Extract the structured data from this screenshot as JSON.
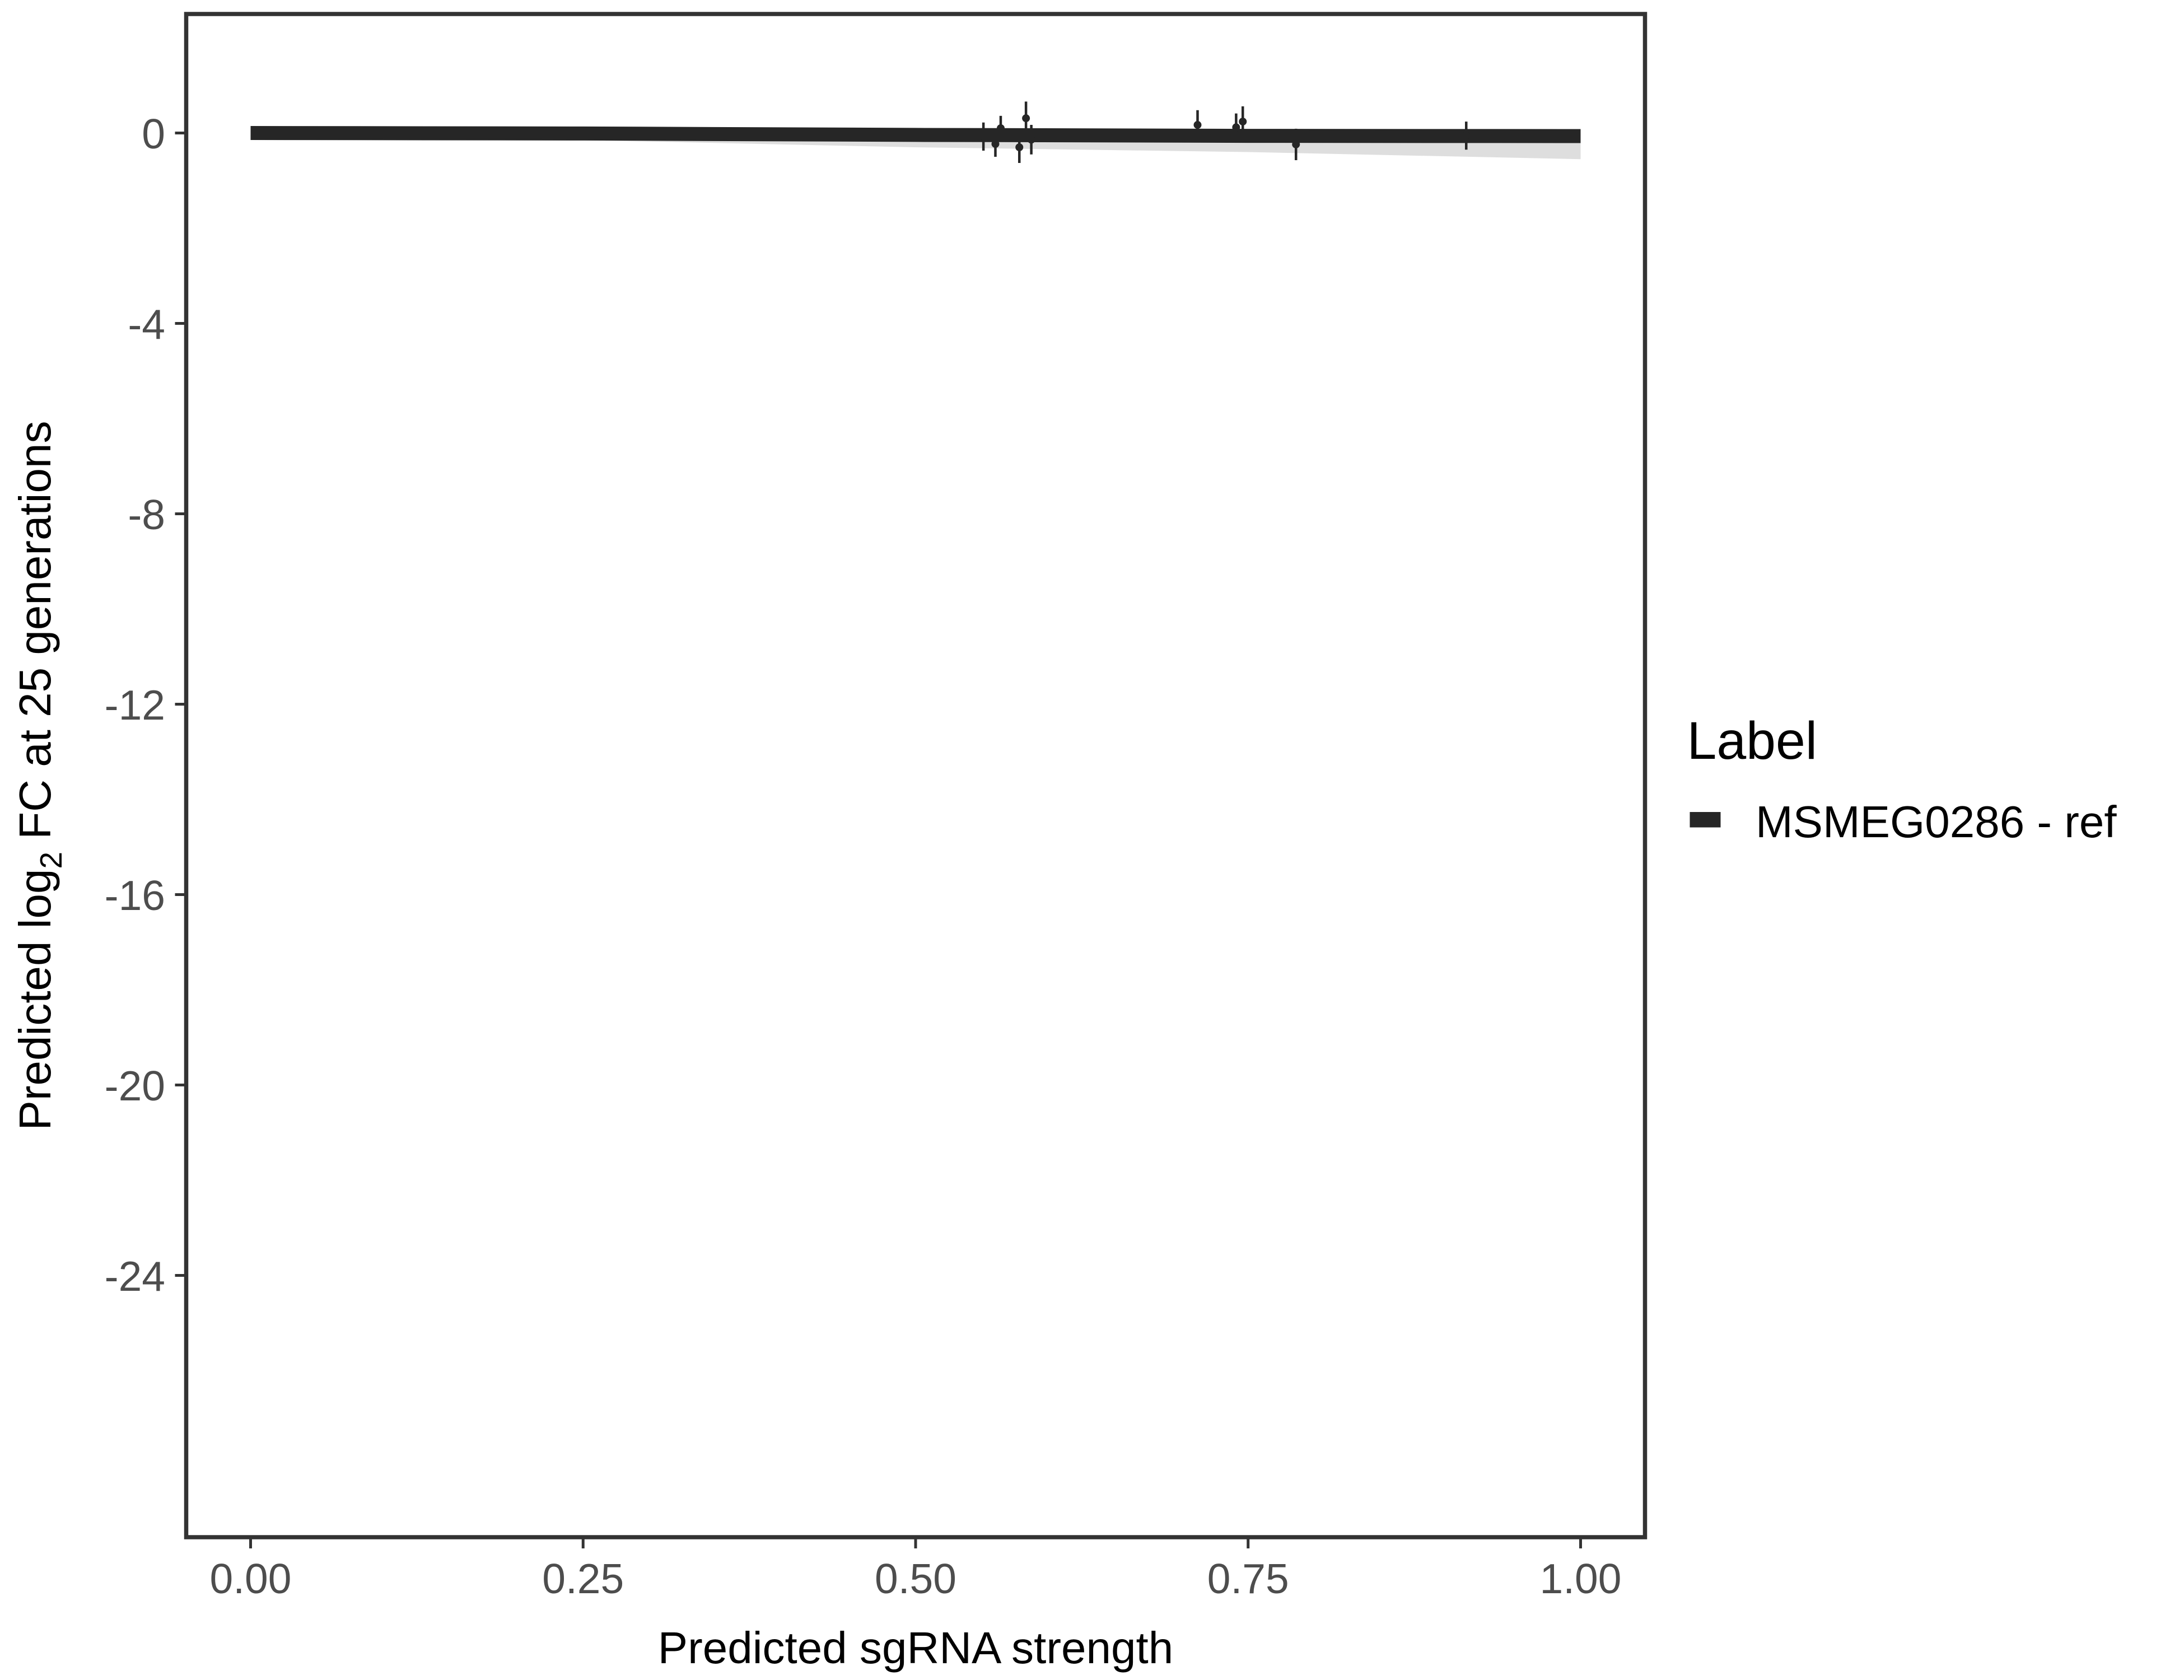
{
  "chart_data": {
    "type": "line",
    "xlabel": "Predicted sgRNA strength",
    "ylabel_prefix": "Predicted  log",
    "ylabel_sub": "2",
    "ylabel_suffix": " FC at 25 generations",
    "xlim": [
      -0.05,
      1.05
    ],
    "ylim": [
      -29.5,
      2.5
    ],
    "xticks": [
      0,
      0.25,
      0.5,
      0.75,
      1
    ],
    "xtick_labels": [
      "0.00",
      "0.25",
      "0.50",
      "0.75",
      "1.00"
    ],
    "yticks": [
      0,
      -4,
      -8,
      -12,
      -16,
      -20,
      -24
    ],
    "ytick_labels": [
      "0",
      "-4",
      "-8",
      "-12",
      "-16",
      "-20",
      "-24"
    ],
    "grid": false,
    "legend": {
      "title": "Label",
      "position": "right",
      "entries": [
        "MSMEG0286 - ref"
      ]
    },
    "series": [
      {
        "name": "MSMEG0286 - ref",
        "color": "#262626",
        "fit_line": {
          "x": [
            0,
            0.25,
            0.5,
            0.75,
            1
          ],
          "y": [
            0,
            -0.01,
            -0.04,
            -0.06,
            -0.065
          ]
        },
        "ribbon_lower": {
          "x": [
            0,
            0.25,
            0.5,
            0.75,
            1
          ],
          "y": [
            -0.1,
            -0.15,
            -0.3,
            -0.4,
            -0.55
          ]
        },
        "points": [
          {
            "x": 0.551,
            "y": -0.07,
            "ymin": -0.37,
            "ymax": 0.22
          },
          {
            "x": 0.564,
            "y": 0.1,
            "ymin": -0.15,
            "ymax": 0.36
          },
          {
            "x": 0.56,
            "y": -0.23,
            "ymin": -0.5,
            "ymax": 0.04
          },
          {
            "x": 0.583,
            "y": 0.31,
            "ymin": 0.09,
            "ymax": 0.66
          },
          {
            "x": 0.578,
            "y": -0.3,
            "ymin": -0.63,
            "ymax": 0.03
          },
          {
            "x": 0.587,
            "y": -0.14,
            "ymin": -0.45,
            "ymax": 0.17
          },
          {
            "x": 0.712,
            "y": 0.17,
            "ymin": -0.14,
            "ymax": 0.48
          },
          {
            "x": 0.741,
            "y": 0.12,
            "ymin": -0.17,
            "ymax": 0.41
          },
          {
            "x": 0.746,
            "y": 0.24,
            "ymin": -0.08,
            "ymax": 0.56
          },
          {
            "x": 0.786,
            "y": -0.24,
            "ymin": -0.57,
            "ymax": 0.09
          },
          {
            "x": 0.914,
            "y": -0.05,
            "ymin": -0.35,
            "ymax": 0.24
          }
        ]
      }
    ]
  }
}
